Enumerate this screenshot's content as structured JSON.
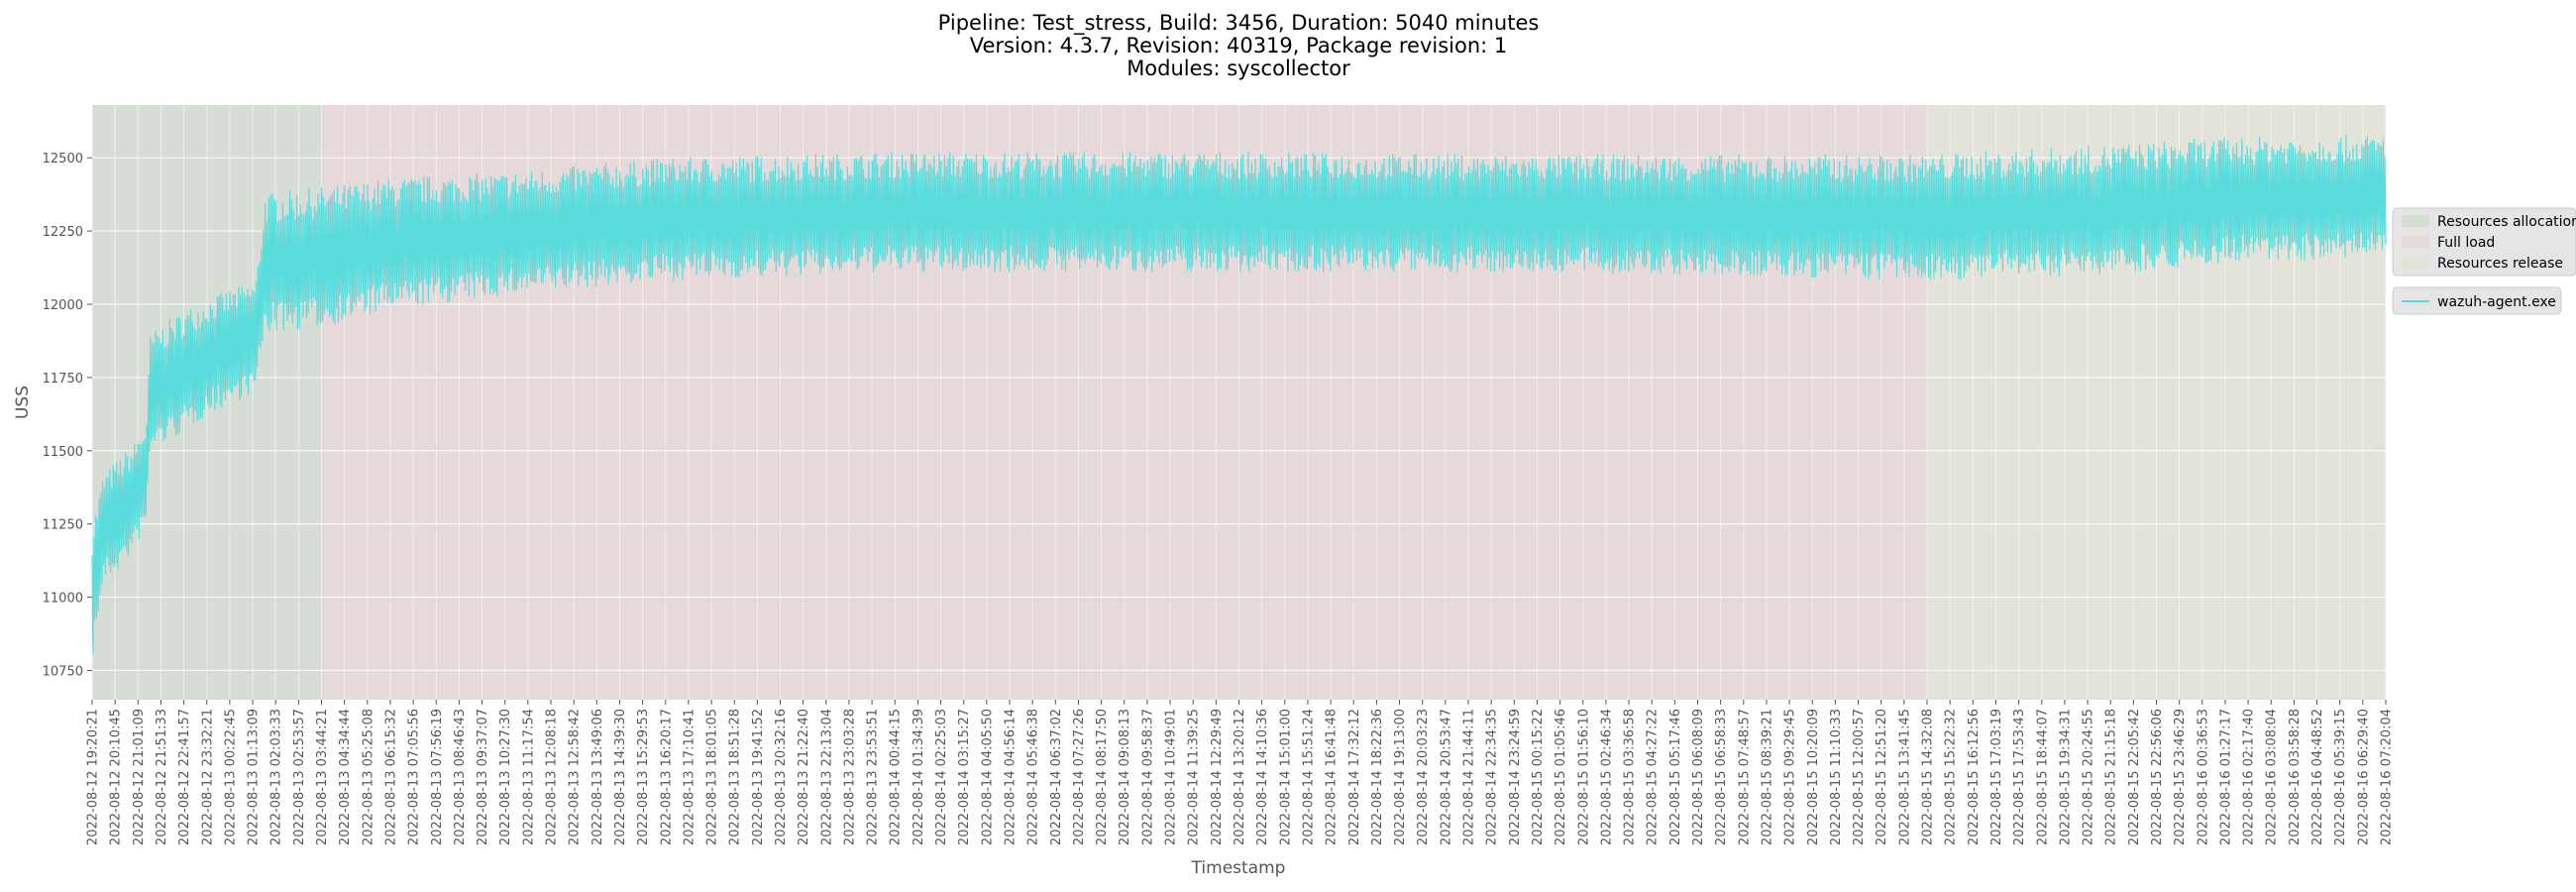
{
  "chart_data": {
    "type": "line",
    "title": [
      "Pipeline: Test_stress, Build: 3456, Duration: 5040 minutes",
      "Version: 4.3.7, Revision: 40319, Package revision: 1",
      "Modules: syscollector"
    ],
    "xlabel": "Timestamp",
    "ylabel": "USS",
    "ylim": [
      10650,
      12680
    ],
    "yticks": [
      10750,
      11000,
      11250,
      11500,
      11750,
      12000,
      12250,
      12500
    ],
    "x_start": "2022-08-12 19:20:21",
    "x_end": "2022-08-16 07:20:04",
    "xtick_labels": [
      "2022-08-12 19:20:21",
      "2022-08-12 20:10:45",
      "2022-08-12 21:01:09",
      "2022-08-12 21:51:33",
      "2022-08-12 22:41:57",
      "2022-08-12 23:32:21",
      "2022-08-13 00:22:45",
      "2022-08-13 01:13:09",
      "2022-08-13 02:03:33",
      "2022-08-13 02:53:57",
      "2022-08-13 03:44:21",
      "2022-08-13 04:34:44",
      "2022-08-13 05:25:08",
      "2022-08-13 06:15:32",
      "2022-08-13 07:05:56",
      "2022-08-13 07:56:19",
      "2022-08-13 08:46:43",
      "2022-08-13 09:37:07",
      "2022-08-13 10:27:30",
      "2022-08-13 11:17:54",
      "2022-08-13 12:08:18",
      "2022-08-13 12:58:42",
      "2022-08-13 13:49:06",
      "2022-08-13 14:39:30",
      "2022-08-13 15:29:53",
      "2022-08-13 16:20:17",
      "2022-08-13 17:10:41",
      "2022-08-13 18:01:05",
      "2022-08-13 18:51:28",
      "2022-08-13 19:41:52",
      "2022-08-13 20:32:16",
      "2022-08-13 21:22:40",
      "2022-08-13 22:13:04",
      "2022-08-13 23:03:28",
      "2022-08-13 23:53:51",
      "2022-08-14 00:44:15",
      "2022-08-14 01:34:39",
      "2022-08-14 02:25:03",
      "2022-08-14 03:15:27",
      "2022-08-14 04:05:50",
      "2022-08-14 04:56:14",
      "2022-08-14 05:46:38",
      "2022-08-14 06:37:02",
      "2022-08-14 07:27:26",
      "2022-08-14 08:17:50",
      "2022-08-14 09:08:13",
      "2022-08-14 09:58:37",
      "2022-08-14 10:49:01",
      "2022-08-14 11:39:25",
      "2022-08-14 12:29:49",
      "2022-08-14 13:20:12",
      "2022-08-14 14:10:36",
      "2022-08-14 15:01:00",
      "2022-08-14 15:51:24",
      "2022-08-14 16:41:48",
      "2022-08-14 17:32:12",
      "2022-08-14 18:22:36",
      "2022-08-14 19:13:00",
      "2022-08-14 20:03:23",
      "2022-08-14 20:53:47",
      "2022-08-14 21:44:11",
      "2022-08-14 22:34:35",
      "2022-08-14 23:24:59",
      "2022-08-15 00:15:22",
      "2022-08-15 01:05:46",
      "2022-08-15 01:56:10",
      "2022-08-15 02:46:34",
      "2022-08-15 03:36:58",
      "2022-08-15 04:27:22",
      "2022-08-15 05:17:46",
      "2022-08-15 06:08:09",
      "2022-08-15 06:58:33",
      "2022-08-15 07:48:57",
      "2022-08-15 08:39:21",
      "2022-08-15 09:29:45",
      "2022-08-15 10:20:09",
      "2022-08-15 11:10:33",
      "2022-08-15 12:00:57",
      "2022-08-15 12:51:20",
      "2022-08-15 13:41:45",
      "2022-08-15 14:32:08",
      "2022-08-15 15:22:32",
      "2022-08-15 16:12:56",
      "2022-08-15 17:03:19",
      "2022-08-15 17:53:43",
      "2022-08-15 18:44:07",
      "2022-08-15 19:34:31",
      "2022-08-15 20:24:55",
      "2022-08-15 21:15:18",
      "2022-08-15 22:05:42",
      "2022-08-15 22:56:06",
      "2022-08-15 23:46:29",
      "2022-08-16 00:36:53",
      "2022-08-16 01:27:17",
      "2022-08-16 02:17:40",
      "2022-08-16 03:08:04",
      "2022-08-16 03:58:28",
      "2022-08-16 04:48:52",
      "2022-08-16 05:39:15",
      "2022-08-16 06:29:40",
      "2022-08-16 07:20:04"
    ],
    "phases": [
      {
        "label": "Resources allocation",
        "start": "2022-08-12 19:20:21",
        "end": "2022-08-13 03:44:21",
        "color": "#a8c8a8"
      },
      {
        "label": "Full load",
        "start": "2022-08-13 03:44:21",
        "end": "2022-08-15 14:32:08",
        "color": "#e8b8b8"
      },
      {
        "label": "Resources release",
        "start": "2022-08-15 14:32:08",
        "end": "2022-08-16 07:20:04",
        "color": "#e0e0b8"
      }
    ],
    "series": [
      {
        "name": "wazuh-agent.exe",
        "color": "#5adcdc",
        "band_samples": [
          {
            "x": "2022-08-12 19:20:21",
            "low": 10780,
            "high": 11250
          },
          {
            "x": "2022-08-12 19:45:00",
            "low": 11050,
            "high": 11420
          },
          {
            "x": "2022-08-12 20:10:45",
            "low": 11080,
            "high": 11460
          },
          {
            "x": "2022-08-12 20:50:00",
            "low": 11150,
            "high": 11520
          },
          {
            "x": "2022-08-12 21:20:00",
            "low": 11250,
            "high": 11600
          },
          {
            "x": "2022-08-12 21:28:00",
            "low": 11500,
            "high": 11900
          },
          {
            "x": "2022-08-12 22:41:57",
            "low": 11560,
            "high": 11980
          },
          {
            "x": "2022-08-12 23:32:21",
            "low": 11620,
            "high": 12020
          },
          {
            "x": "2022-08-13 00:22:45",
            "low": 11660,
            "high": 12050
          },
          {
            "x": "2022-08-13 01:20:00",
            "low": 11700,
            "high": 12080
          },
          {
            "x": "2022-08-13 01:40:00",
            "low": 11900,
            "high": 12380
          },
          {
            "x": "2022-08-13 03:44:21",
            "low": 11920,
            "high": 12400
          },
          {
            "x": "2022-08-13 06:15:32",
            "low": 11980,
            "high": 12430
          },
          {
            "x": "2022-08-13 10:27:30",
            "low": 12030,
            "high": 12450
          },
          {
            "x": "2022-08-13 16:20:17",
            "low": 12080,
            "high": 12500
          },
          {
            "x": "2022-08-14 00:44:15",
            "low": 12110,
            "high": 12520
          },
          {
            "x": "2022-08-14 12:29:49",
            "low": 12110,
            "high": 12520
          },
          {
            "x": "2022-08-15 00:15:22",
            "low": 12110,
            "high": 12510
          },
          {
            "x": "2022-08-15 14:32:08",
            "low": 12080,
            "high": 12510
          },
          {
            "x": "2022-08-15 20:24:55",
            "low": 12100,
            "high": 12540
          },
          {
            "x": "2022-08-16 01:27:17",
            "low": 12140,
            "high": 12570
          },
          {
            "x": "2022-08-16 07:20:04",
            "low": 12160,
            "high": 12580
          }
        ]
      }
    ],
    "grid": true,
    "legend_placement": "right"
  }
}
